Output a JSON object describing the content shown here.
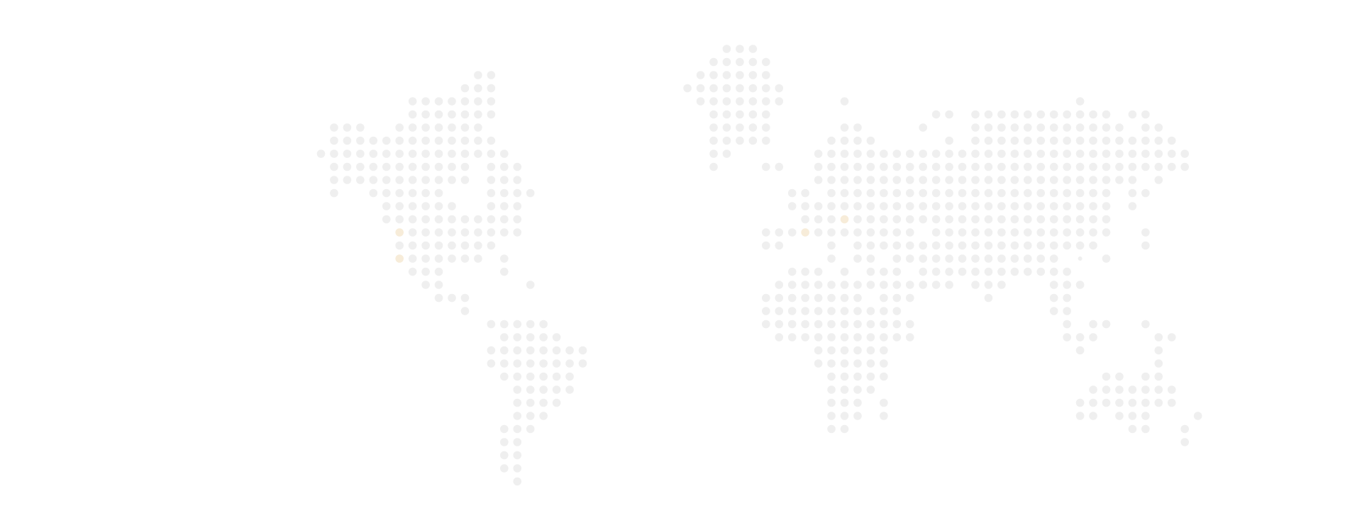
{
  "map": {
    "style": "dot-matrix world map",
    "colors": {
      "background": "#ffffff",
      "dot": "#efefef",
      "highlight": "#f7ecd9"
    },
    "highlighted_regions": [
      "western-north-america-1",
      "western-north-america-2",
      "western-north-america-3",
      "western-europe-1",
      "western-europe-2"
    ]
  }
}
